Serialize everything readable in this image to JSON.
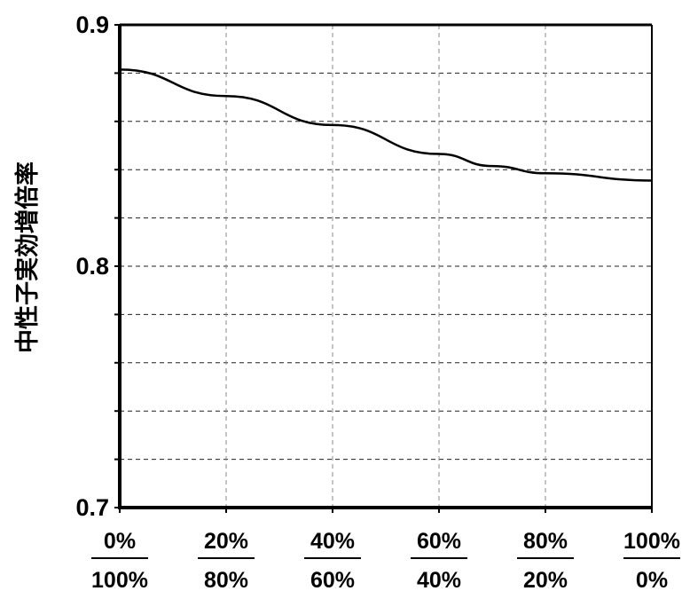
{
  "chart_data": {
    "type": "line",
    "title": "",
    "xlabel": "",
    "ylabel": "中性子実効増倍率",
    "ylim": [
      0.7,
      0.9
    ],
    "yticks": [
      "0.9",
      "0.8",
      "0.7"
    ],
    "x": [
      0,
      20,
      40,
      60,
      70,
      80,
      100
    ],
    "xticks": [
      {
        "top": "0%",
        "bottom": "100%"
      },
      {
        "top": "20%",
        "bottom": "80%"
      },
      {
        "top": "40%",
        "bottom": "60%"
      },
      {
        "top": "60%",
        "bottom": "40%"
      },
      {
        "top": "80%",
        "bottom": "20%"
      },
      {
        "top": "100%",
        "bottom": "0%"
      }
    ],
    "series": [
      {
        "values": [
          0.8815,
          0.8705,
          0.8585,
          0.8465,
          0.8415,
          0.8385,
          0.8355
        ]
      }
    ],
    "grid": true,
    "line_color": "#000000"
  }
}
